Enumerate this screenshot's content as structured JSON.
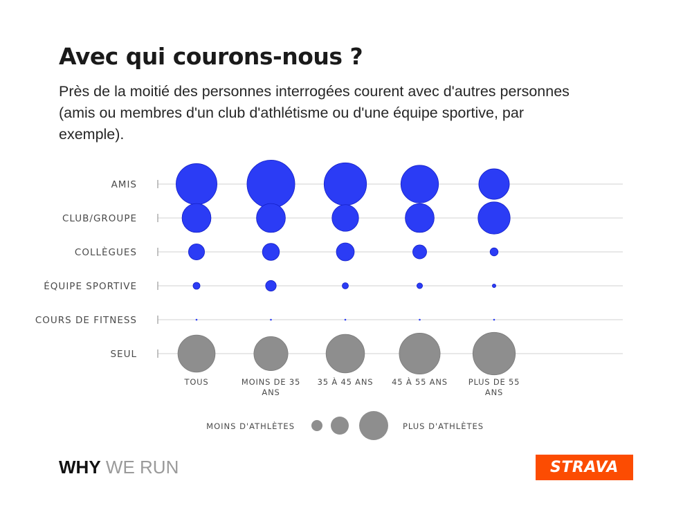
{
  "title": "Avec qui courons-nous ?",
  "subtitle": "Près de la moitié des personnes interrogées courent avec d'autres personnes (amis ou membres d'un club d'athlétisme ou d'une équipe sportive, par exemple).",
  "colors": {
    "blue": "#2b3cf5",
    "gray": "#8e8e8e",
    "gridline": "#d9d9d9",
    "accent": "#fc4c02"
  },
  "chart_data": {
    "type": "bubble-matrix",
    "rows": [
      "AMIS",
      "CLUB/GROUPE",
      "COLLÈGUES",
      "ÉQUIPE SPORTIVE",
      "COURS DE FITNESS",
      "SEUL"
    ],
    "columns": [
      "TOUS",
      "MOINS DE 35 ANS",
      "35 À 45 ANS",
      "45 À 55 ANS",
      "PLUS DE 55 ANS"
    ],
    "size_unit": "relative bubble area (estimated, not printed)",
    "values": [
      [
        52,
        71,
        56,
        44,
        29
      ],
      [
        26,
        26,
        22,
        26,
        32
      ],
      [
        8,
        9,
        10,
        6,
        2
      ],
      [
        1.5,
        3.5,
        1.2,
        1,
        0.4
      ],
      [
        0.1,
        0.1,
        0.1,
        0.1,
        0.1
      ],
      [
        43,
        36,
        46,
        52,
        56
      ]
    ],
    "series_colors": [
      "blue",
      "blue",
      "blue",
      "blue",
      "blue",
      "gray"
    ],
    "legend": {
      "left_label": "MOINS D'ATHLÈTES",
      "right_label": "PLUS D'ATHLÈTES",
      "sizes": [
        4,
        11,
        31
      ]
    }
  },
  "footer": {
    "brand_bold": "WHY",
    "brand_light": "WE RUN",
    "logo_text": "STRAVA"
  }
}
